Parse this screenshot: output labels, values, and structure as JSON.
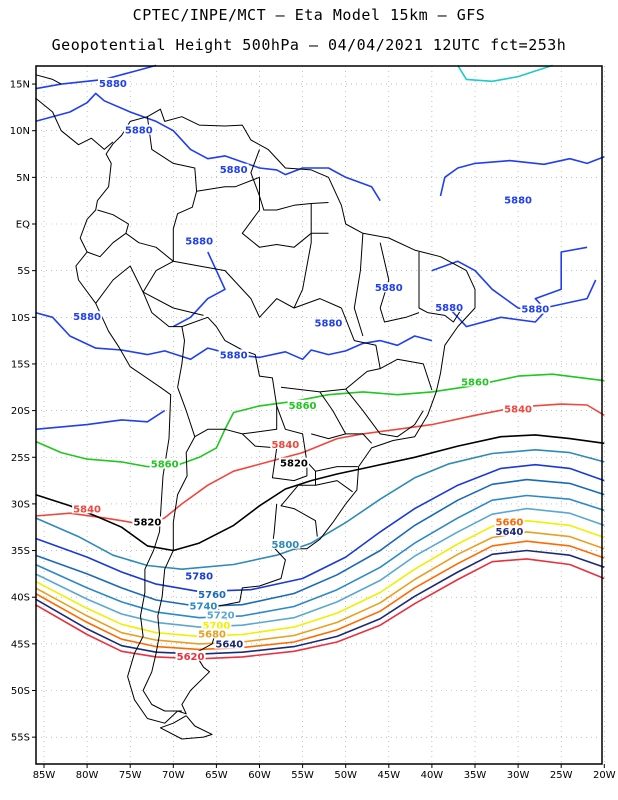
{
  "header": {
    "line1": "CPTEC/INPE/MCT –  Eta Model 15km – GFS",
    "line2": "Geopotential Height 500hPa – 04/04/2021 12UTC fct=253h"
  },
  "map": {
    "lon_range": [
      -86,
      -20
    ],
    "lat_range": [
      -58,
      17
    ],
    "lat_ticks": [
      "15N",
      "10N",
      "5N",
      "EQ",
      "5S",
      "10S",
      "15S",
      "20S",
      "25S",
      "30S",
      "35S",
      "40S",
      "45S",
      "50S",
      "55S"
    ],
    "lon_ticks": [
      "85W",
      "80W",
      "75W",
      "70W",
      "65W",
      "60W",
      "55W",
      "50W",
      "45W",
      "40W",
      "35W",
      "30W",
      "25W",
      "20W"
    ],
    "grid": "dotted",
    "colors": {
      "5880": "#1f3ff0",
      "5860": "#1ec81e",
      "5840": "#f0463c",
      "5820": "#000000",
      "5800": "#2e8ab8",
      "5780": "#1a3ad8",
      "5760": "#1a6ab8",
      "5740": "#2a8ac8",
      "5720": "#5aa8d0",
      "5700": "#f0f000",
      "5680": "#e8a020",
      "5660": "#ff6a00",
      "5640": "#1a2a7a",
      "5620": "#e83040",
      "teal": "#20c8c8",
      "coast": "#000000"
    },
    "contour_labels": [
      {
        "text": "5880",
        "color": "5880"
      },
      {
        "text": "5880",
        "color": "5880"
      },
      {
        "text": "5880",
        "color": "5880"
      },
      {
        "text": "5880",
        "color": "5880"
      },
      {
        "text": "5880",
        "color": "5880"
      },
      {
        "text": "5880",
        "color": "5880"
      },
      {
        "text": "5880",
        "color": "5880"
      },
      {
        "text": "5880",
        "color": "5880"
      },
      {
        "text": "5880",
        "color": "5880"
      },
      {
        "text": "5880",
        "color": "5880"
      },
      {
        "text": "5880",
        "color": "5880"
      },
      {
        "text": "5860",
        "color": "5860"
      },
      {
        "text": "5860",
        "color": "5860"
      },
      {
        "text": "5860",
        "color": "5860"
      },
      {
        "text": "5840",
        "color": "5840"
      },
      {
        "text": "5840",
        "color": "5840"
      },
      {
        "text": "5840",
        "color": "5840"
      },
      {
        "text": "5820",
        "color": "5820"
      },
      {
        "text": "5820",
        "color": "5820"
      },
      {
        "text": "5800",
        "color": "5800"
      },
      {
        "text": "5780",
        "color": "5780"
      },
      {
        "text": "5760",
        "color": "5760"
      },
      {
        "text": "5740",
        "color": "5740"
      },
      {
        "text": "5720",
        "color": "5720"
      },
      {
        "text": "5700",
        "color": "5700"
      },
      {
        "text": "5680",
        "color": "5680"
      },
      {
        "text": "5660",
        "color": "5660"
      },
      {
        "text": "5640",
        "color": "5640"
      },
      {
        "text": "5620",
        "color": "5620"
      },
      {
        "text": "5640",
        "color": "5640"
      }
    ]
  }
}
